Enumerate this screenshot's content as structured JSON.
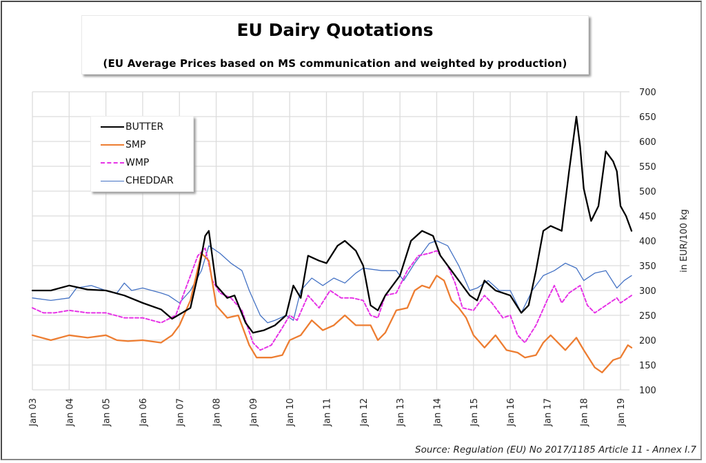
{
  "header": {
    "title": "EU Dairy Quotations",
    "subtitle": "(EU Average Prices based on MS communication and weighted by production)"
  },
  "footer": {
    "source": "Source: Regulation (EU) No 2017/1185 Article 11 - Annex I.7"
  },
  "chart_data": {
    "type": "line",
    "title": "EU Dairy Quotations",
    "subtitle": "(EU Average Prices based on MS communication and weighted by production)",
    "xlabel": "",
    "ylabel": "in EUR/100 kg",
    "x_unit": "year (fractional)",
    "xlim": [
      2003.0,
      2019.3
    ],
    "ylim": [
      100,
      700
    ],
    "yaxis_side": "right",
    "grid": true,
    "legend_position": "top-left",
    "x_ticks": [
      {
        "value": 2003,
        "label": "Jan 03"
      },
      {
        "value": 2004,
        "label": "Jan 04"
      },
      {
        "value": 2005,
        "label": "Jan 05"
      },
      {
        "value": 2006,
        "label": "Jan 06"
      },
      {
        "value": 2007,
        "label": "Jan 07"
      },
      {
        "value": 2008,
        "label": "Jan 08"
      },
      {
        "value": 2009,
        "label": "Jan 09"
      },
      {
        "value": 2010,
        "label": "Jan 10"
      },
      {
        "value": 2011,
        "label": "Jan 11"
      },
      {
        "value": 2012,
        "label": "Jan 12"
      },
      {
        "value": 2013,
        "label": "Jan 13"
      },
      {
        "value": 2014,
        "label": "Jan 14"
      },
      {
        "value": 2015,
        "label": "Jan 15"
      },
      {
        "value": 2016,
        "label": "Jan 16"
      },
      {
        "value": 2017,
        "label": "Jan 17"
      },
      {
        "value": 2018,
        "label": "Jan 18"
      },
      {
        "value": 2019,
        "label": "Jan 19"
      }
    ],
    "y_ticks": [
      100,
      150,
      200,
      250,
      300,
      350,
      400,
      450,
      500,
      550,
      600,
      650,
      700
    ],
    "series": [
      {
        "name": "BUTTER",
        "color": "#000000",
        "style": "solid",
        "x": [
          2003.0,
          2003.5,
          2004.0,
          2004.5,
          2005.0,
          2005.5,
          2006.0,
          2006.5,
          2006.8,
          2007.0,
          2007.3,
          2007.5,
          2007.7,
          2007.8,
          2008.0,
          2008.3,
          2008.5,
          2008.8,
          2009.0,
          2009.3,
          2009.6,
          2009.9,
          2010.1,
          2010.3,
          2010.5,
          2010.8,
          2011.0,
          2011.3,
          2011.5,
          2011.8,
          2012.0,
          2012.2,
          2012.4,
          2012.6,
          2012.9,
          2013.0,
          2013.3,
          2013.6,
          2013.9,
          2014.1,
          2014.4,
          2014.6,
          2014.9,
          2015.1,
          2015.3,
          2015.6,
          2016.0,
          2016.3,
          2016.5,
          2016.7,
          2016.9,
          2017.1,
          2017.4,
          2017.6,
          2017.8,
          2017.9,
          2018.0,
          2018.2,
          2018.4,
          2018.6,
          2018.8,
          2018.9,
          2019.0,
          2019.15,
          2019.3
        ],
        "values": [
          300,
          300,
          310,
          302,
          300,
          290,
          275,
          262,
          243,
          252,
          265,
          330,
          410,
          420,
          310,
          285,
          290,
          235,
          215,
          220,
          230,
          250,
          310,
          285,
          370,
          360,
          355,
          390,
          400,
          380,
          350,
          270,
          260,
          290,
          320,
          330,
          400,
          420,
          410,
          370,
          340,
          320,
          290,
          280,
          320,
          300,
          290,
          255,
          270,
          340,
          420,
          430,
          420,
          540,
          650,
          590,
          505,
          440,
          470,
          580,
          560,
          540,
          470,
          450,
          420
        ]
      },
      {
        "name": "SMP",
        "color": "#ed7d31",
        "style": "solid",
        "x": [
          2003.0,
          2003.5,
          2004.0,
          2004.5,
          2005.0,
          2005.3,
          2005.6,
          2006.0,
          2006.5,
          2006.8,
          2007.0,
          2007.3,
          2007.6,
          2007.8,
          2008.0,
          2008.3,
          2008.6,
          2008.9,
          2009.1,
          2009.5,
          2009.8,
          2010.0,
          2010.3,
          2010.6,
          2010.9,
          2011.2,
          2011.5,
          2011.8,
          2012.2,
          2012.4,
          2012.6,
          2012.9,
          2013.2,
          2013.4,
          2013.6,
          2013.8,
          2014.0,
          2014.2,
          2014.4,
          2014.6,
          2014.8,
          2015.0,
          2015.3,
          2015.6,
          2015.9,
          2016.2,
          2016.4,
          2016.7,
          2016.9,
          2017.1,
          2017.5,
          2017.8,
          2018.0,
          2018.3,
          2018.5,
          2018.8,
          2019.0,
          2019.2,
          2019.3
        ],
        "values": [
          210,
          200,
          210,
          205,
          210,
          200,
          198,
          200,
          195,
          210,
          230,
          280,
          375,
          360,
          270,
          245,
          250,
          190,
          165,
          165,
          170,
          200,
          210,
          240,
          220,
          230,
          250,
          230,
          230,
          200,
          215,
          260,
          265,
          300,
          310,
          305,
          330,
          320,
          280,
          265,
          245,
          210,
          185,
          210,
          180,
          175,
          165,
          170,
          195,
          210,
          180,
          205,
          180,
          145,
          135,
          160,
          165,
          190,
          185
        ]
      },
      {
        "name": "WMP",
        "color": "#e632e6",
        "style": "dashed",
        "x": [
          2003.0,
          2003.3,
          2003.6,
          2004.0,
          2004.5,
          2005.0,
          2005.5,
          2006.0,
          2006.5,
          2006.9,
          2007.2,
          2007.5,
          2007.7,
          2007.9,
          2008.1,
          2008.4,
          2008.7,
          2009.0,
          2009.2,
          2009.5,
          2009.8,
          2010.0,
          2010.2,
          2010.5,
          2010.8,
          2011.1,
          2011.4,
          2011.7,
          2012.0,
          2012.2,
          2012.4,
          2012.6,
          2012.9,
          2013.2,
          2013.5,
          2013.8,
          2014.0,
          2014.3,
          2014.5,
          2014.7,
          2015.0,
          2015.3,
          2015.5,
          2015.8,
          2016.0,
          2016.2,
          2016.4,
          2016.7,
          2017.0,
          2017.2,
          2017.4,
          2017.6,
          2017.9,
          2018.1,
          2018.3,
          2018.6,
          2018.9,
          2019.0,
          2019.3
        ],
        "values": [
          265,
          255,
          255,
          260,
          255,
          255,
          245,
          245,
          235,
          250,
          310,
          370,
          385,
          320,
          295,
          285,
          260,
          195,
          180,
          190,
          225,
          250,
          240,
          290,
          265,
          300,
          285,
          285,
          280,
          250,
          245,
          290,
          295,
          340,
          370,
          375,
          380,
          350,
          315,
          265,
          260,
          290,
          275,
          245,
          250,
          210,
          195,
          230,
          280,
          310,
          275,
          295,
          310,
          270,
          255,
          270,
          285,
          275,
          290
        ]
      },
      {
        "name": "CHEDDAR",
        "color": "#4472c4",
        "style": "solid-thin",
        "x": [
          2003.0,
          2003.5,
          2004.0,
          2004.2,
          2004.6,
          2005.0,
          2005.3,
          2005.5,
          2005.7,
          2006.0,
          2006.5,
          2006.7,
          2007.0,
          2007.3,
          2007.6,
          2007.8,
          2008.1,
          2008.4,
          2008.7,
          2008.9,
          2009.2,
          2009.4,
          2009.6,
          2009.9,
          2010.1,
          2010.3,
          2010.6,
          2010.9,
          2011.2,
          2011.5,
          2011.8,
          2012.0,
          2012.5,
          2012.9,
          2013.1,
          2013.4,
          2013.8,
          2014.0,
          2014.3,
          2014.6,
          2014.9,
          2015.1,
          2015.4,
          2015.7,
          2016.0,
          2016.3,
          2016.6,
          2016.9,
          2017.2,
          2017.5,
          2017.8,
          2018.0,
          2018.3,
          2018.6,
          2018.9,
          2019.1,
          2019.3
        ],
        "values": [
          285,
          280,
          285,
          305,
          310,
          300,
          295,
          315,
          300,
          305,
          295,
          290,
          275,
          300,
          340,
          390,
          375,
          355,
          340,
          300,
          250,
          235,
          240,
          250,
          240,
          300,
          325,
          310,
          325,
          315,
          335,
          345,
          340,
          340,
          320,
          355,
          395,
          400,
          390,
          350,
          300,
          305,
          320,
          300,
          300,
          255,
          300,
          330,
          340,
          355,
          345,
          320,
          335,
          340,
          305,
          320,
          330
        ]
      }
    ]
  }
}
